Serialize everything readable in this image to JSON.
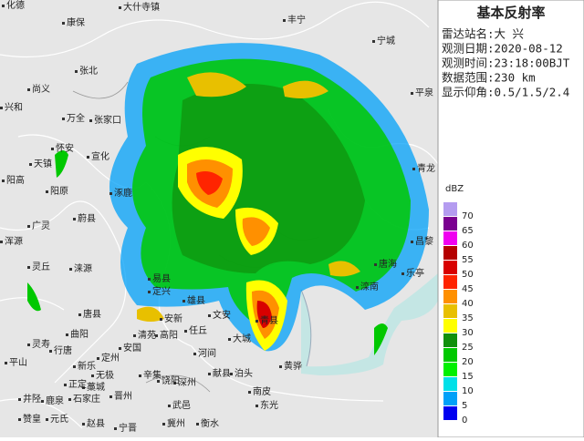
{
  "panel": {
    "title": "基本反射率",
    "info": [
      "雷达站名:大 兴",
      "观测日期:2020-08-12",
      "观测时间:23:18:00BJT",
      "数据范围:230 km",
      "显示仰角:0.5/1.5/2.4"
    ]
  },
  "legend": {
    "unit": "dBZ",
    "items": [
      {
        "label": "70",
        "color": "#b49cf0"
      },
      {
        "label": "65",
        "color": "#7a0090"
      },
      {
        "label": "60",
        "color": "#f000f0"
      },
      {
        "label": "55",
        "color": "#b40000"
      },
      {
        "label": "50",
        "color": "#d80000"
      },
      {
        "label": "45",
        "color": "#ff2400"
      },
      {
        "label": "40",
        "color": "#ff9000"
      },
      {
        "label": "35",
        "color": "#e8c000"
      },
      {
        "label": "30",
        "color": "#ffff00"
      },
      {
        "label": "25",
        "color": "#10900c"
      },
      {
        "label": "20",
        "color": "#00c800"
      },
      {
        "label": "15",
        "color": "#00f000"
      },
      {
        "label": "10",
        "color": "#00e0e8"
      },
      {
        "label": "5",
        "color": "#00a0f8"
      },
      {
        "label": "0",
        "color": "#0000f0"
      }
    ]
  },
  "map": {
    "places": [
      "化德",
      "大什寺镇",
      "康保",
      "宁城",
      "尚义",
      "兴和",
      "张北",
      "万全",
      "张家口",
      "平泉",
      "宣化",
      "怀安",
      "天镇",
      "阳高",
      "阳原",
      "涿鹿",
      "广灵",
      "蔚县",
      "涞源",
      "灵丘",
      "浑源",
      "易县",
      "定兴",
      "唐县",
      "曲阳",
      "行唐",
      "灵寿",
      "平山",
      "新乐",
      "定州",
      "安国",
      "清苑",
      "高阳",
      "安新",
      "雄县",
      "文安",
      "任丘",
      "河间",
      "大城",
      "青县",
      "黄骅",
      "献县",
      "泊头",
      "南皮",
      "东光",
      "武邑",
      "深州",
      "饶阳",
      "衡水",
      "冀州",
      "辛集",
      "晋州",
      "无极",
      "藁城",
      "石家庄",
      "正定",
      "鹿泉",
      "井陉",
      "赞皇",
      "元氏",
      "赵县",
      "宁晋",
      "青龙",
      "昌黎",
      "乐亭",
      "唐海",
      "滦南",
      "丰宁"
    ]
  }
}
